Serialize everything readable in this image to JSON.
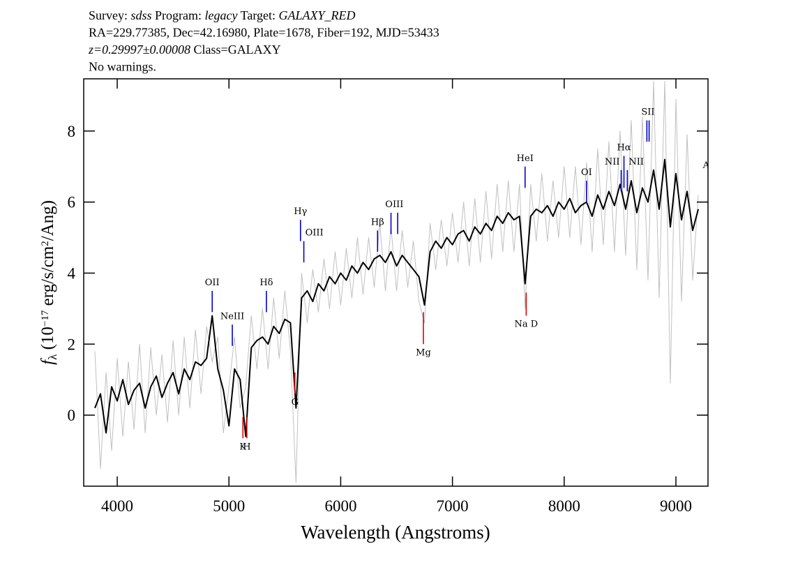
{
  "chart_data": {
    "type": "line",
    "header": [
      [
        {
          "text": "Survey: "
        },
        {
          "text": "sdss",
          "italic": true
        },
        {
          "text": " Program: "
        },
        {
          "text": "legacy",
          "italic": true
        },
        {
          "text": " Target: "
        },
        {
          "text": "GALAXY_RED",
          "italic": true
        }
      ],
      [
        {
          "text": "RA=229.77385, Dec=42.16980, Plate=1678, Fiber=192, MJD=53433"
        }
      ],
      [
        {
          "text": "z=0.29997±0.00008",
          "italic": true
        },
        {
          "text": " Class=GALAXY"
        }
      ],
      [
        {
          "text": "No warnings."
        }
      ]
    ],
    "xlabel": "Wavelength (Angstroms)",
    "ylabel": [
      {
        "text": "f",
        "style": "italic"
      },
      {
        "text": "λ",
        "style": "sub"
      },
      {
        "text": " (10"
      },
      {
        "text": "−17",
        "style": "sup"
      },
      {
        "text": " erg/s/cm"
      },
      {
        "text": "2",
        "style": "sup"
      },
      {
        "text": "/Ang)"
      }
    ],
    "xlim": [
      3700,
      9287
    ],
    "ylim": [
      -2,
      9.47
    ],
    "xticks": [
      4000,
      5000,
      6000,
      7000,
      8000,
      9000
    ],
    "yticks": [
      0,
      2,
      4,
      6,
      8
    ],
    "x": [
      3800,
      3850,
      3900,
      3950,
      4000,
      4050,
      4100,
      4150,
      4200,
      4250,
      4300,
      4350,
      4400,
      4450,
      4500,
      4550,
      4600,
      4650,
      4700,
      4750,
      4800,
      4850,
      4900,
      4950,
      5000,
      5050,
      5100,
      5150,
      5200,
      5250,
      5300,
      5350,
      5400,
      5450,
      5500,
      5550,
      5600,
      5650,
      5700,
      5750,
      5800,
      5850,
      5900,
      5950,
      6000,
      6050,
      6100,
      6150,
      6200,
      6250,
      6300,
      6350,
      6400,
      6450,
      6500,
      6550,
      6600,
      6650,
      6700,
      6750,
      6800,
      6850,
      6900,
      6950,
      7000,
      7050,
      7100,
      7150,
      7200,
      7250,
      7300,
      7350,
      7400,
      7450,
      7500,
      7550,
      7600,
      7650,
      7700,
      7750,
      7800,
      7850,
      7900,
      7950,
      8000,
      8050,
      8100,
      8150,
      8200,
      8250,
      8300,
      8350,
      8400,
      8450,
      8500,
      8550,
      8600,
      8650,
      8700,
      8750,
      8800,
      8850,
      8900,
      8950,
      9000,
      9050,
      9100,
      9150,
      9200
    ],
    "series": [
      {
        "color": "#c0c0c0",
        "values": [
          1.8,
          -1.5,
          1.2,
          -1.0,
          1.6,
          -0.6,
          1.5,
          -0.4,
          2.0,
          -0.5,
          1.9,
          0.0,
          1.7,
          -0.2,
          2.1,
          0.0,
          2.2,
          0.2,
          2.4,
          0.6,
          2.5,
          1.5,
          2.2,
          -0.5,
          0.8,
          2.2,
          0.2,
          0.8,
          2.8,
          1.3,
          3.0,
          1.3,
          3.3,
          1.6,
          3.5,
          1.8,
          -1.9,
          4.0,
          2.6,
          4.1,
          2.9,
          4.4,
          3.0,
          4.6,
          3.1,
          4.7,
          3.3,
          5.0,
          3.4,
          5.0,
          3.6,
          5.4,
          3.5,
          5.3,
          3.5,
          5.2,
          3.6,
          4.9,
          3.2,
          2.6,
          5.4,
          4.1,
          5.5,
          4.2,
          5.7,
          4.3,
          6.0,
          4.2,
          6.1,
          4.3,
          6.3,
          4.4,
          6.5,
          4.6,
          6.6,
          4.6,
          6.5,
          3.0,
          6.5,
          4.9,
          6.8,
          4.9,
          6.6,
          5.0,
          7.0,
          5.0,
          7.0,
          4.8,
          7.1,
          4.6,
          7.5,
          4.8,
          7.7,
          4.6,
          8.0,
          4.5,
          8.3,
          4.1,
          8.4,
          3.8,
          9.4,
          3.3,
          9.4,
          0.9,
          8.9,
          3.2,
          7.9,
          3.8,
          6.2
        ]
      },
      {
        "color": "#000000",
        "values": [
          0.2,
          0.6,
          -0.5,
          0.8,
          0.4,
          1.0,
          0.3,
          0.7,
          0.9,
          0.2,
          0.8,
          1.1,
          0.5,
          0.9,
          1.2,
          0.6,
          1.3,
          1.0,
          1.5,
          1.4,
          1.6,
          2.8,
          1.3,
          0.7,
          -0.3,
          1.3,
          1.0,
          -0.6,
          1.9,
          2.1,
          2.2,
          2.0,
          2.5,
          2.3,
          2.7,
          2.6,
          0.2,
          3.3,
          3.5,
          3.2,
          3.7,
          3.5,
          3.9,
          3.7,
          4.0,
          3.8,
          4.2,
          4.0,
          4.3,
          4.1,
          4.4,
          4.5,
          4.3,
          4.6,
          4.2,
          4.5,
          4.3,
          4.1,
          3.9,
          3.1,
          4.6,
          4.9,
          4.7,
          5.0,
          4.8,
          5.1,
          5.2,
          4.9,
          5.3,
          5.1,
          5.4,
          5.2,
          5.6,
          5.4,
          5.7,
          5.5,
          5.6,
          3.7,
          5.6,
          5.8,
          5.7,
          5.9,
          5.6,
          6.0,
          5.8,
          6.1,
          5.7,
          5.9,
          6.0,
          5.6,
          6.2,
          5.8,
          6.3,
          5.9,
          6.5,
          5.8,
          6.6,
          5.7,
          6.4,
          6.0,
          6.9,
          5.8,
          7.2,
          5.3,
          6.8,
          5.5,
          6.3,
          5.2,
          5.8
        ]
      }
    ],
    "lines": [
      {
        "label": "OII",
        "ticks": [
          4850
        ],
        "ymin": 2.9,
        "ymax": 3.5,
        "color": "#0000cc",
        "position": "above"
      },
      {
        "label": "NeIII",
        "ticks": [
          5030
        ],
        "ymin": 1.95,
        "ymax": 2.55,
        "color": "#0000cc",
        "position": "above"
      },
      {
        "label": "Hδ",
        "ticks": [
          5335
        ],
        "ymin": 2.9,
        "ymax": 3.5,
        "color": "#0000cc",
        "position": "above"
      },
      {
        "label": "Hγ",
        "ticks": [
          5640
        ],
        "ymin": 4.9,
        "ymax": 5.5,
        "color": "#0000cc",
        "position": "above"
      },
      {
        "label": "OIII",
        "ticks": [
          5670
        ],
        "ymin": 4.3,
        "ymax": 4.9,
        "color": "#0000cc",
        "position": "above",
        "anchor": "start"
      },
      {
        "label": "Hβ",
        "ticks": [
          6330
        ],
        "ymin": 4.6,
        "ymax": 5.2,
        "color": "#0000cc",
        "position": "above"
      },
      {
        "label": "OIII",
        "ticks": [
          6450,
          6510
        ],
        "ymin": 5.1,
        "ymax": 5.7,
        "color": "#0000cc",
        "position": "above"
      },
      {
        "label": "HeI",
        "ticks": [
          7650
        ],
        "ymin": 6.4,
        "ymax": 7.0,
        "color": "#0000cc",
        "position": "above"
      },
      {
        "label": "OI",
        "ticks": [
          8200
        ],
        "ymin": 6.0,
        "ymax": 6.6,
        "color": "#0000cc",
        "position": "above"
      },
      {
        "label": "NII",
        "ticks": [
          8510
        ],
        "ymin": 6.3,
        "ymax": 6.9,
        "color": "#0000cc",
        "position": "above",
        "anchor": "end"
      },
      {
        "label": "Hα",
        "ticks": [
          8535
        ],
        "ymin": 6.4,
        "ymax": 7.3,
        "color": "#0000cc",
        "position": "above"
      },
      {
        "label": "NII",
        "ticks": [
          8565
        ],
        "ymin": 6.3,
        "ymax": 6.9,
        "color": "#0000cc",
        "position": "above",
        "anchor": "start"
      },
      {
        "label": "SII",
        "ticks": [
          8740,
          8760
        ],
        "ymin": 7.7,
        "ymax": 8.3,
        "color": "#0000cc",
        "position": "above"
      },
      {
        "label": "Ar",
        "ticks": [
          9290
        ],
        "ymin": 6.2,
        "ymax": 6.8,
        "color": "#0000cc",
        "position": "above"
      },
      {
        "label": "K",
        "ticks": [
          5125
        ],
        "ymin": -0.65,
        "ymax": -0.05,
        "color": "#dd0000",
        "position": "below"
      },
      {
        "label": "H",
        "ticks": [
          5160
        ],
        "ymin": -0.65,
        "ymax": -0.05,
        "color": "#dd0000",
        "position": "below"
      },
      {
        "label": "G",
        "ticks": [
          5590
        ],
        "ymin": 0.6,
        "ymax": 1.2,
        "color": "#dd0000",
        "position": "below"
      },
      {
        "label": "Mg",
        "ticks": [
          6740
        ],
        "ymin": 2.0,
        "ymax": 2.9,
        "color": "#dd0000",
        "position": "below"
      },
      {
        "label": "Na D",
        "ticks": [
          7660
        ],
        "ymin": 2.8,
        "ymax": 3.45,
        "color": "#dd0000",
        "position": "below"
      }
    ]
  }
}
